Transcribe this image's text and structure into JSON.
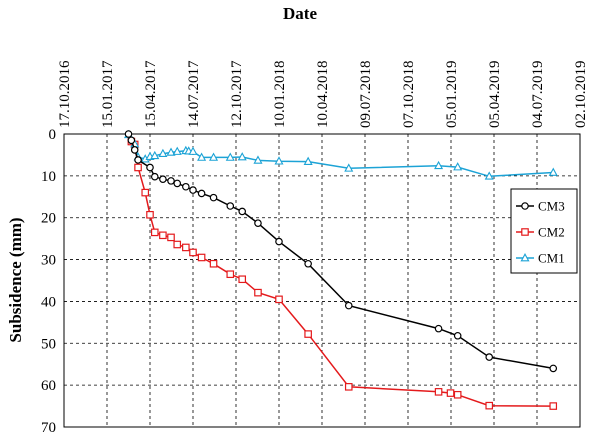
{
  "chart_data": {
    "type": "line",
    "xlabel": "Date",
    "ylabel": "Subsidence (mm)",
    "x_axis": {
      "position": "top",
      "type": "date",
      "range": [
        "2016-10-17",
        "2019-10-02"
      ],
      "tick_labels": [
        "17.10.2016",
        "15.01.2017",
        "15.04.2017",
        "14.07.2017",
        "12.10.2017",
        "10.01.2018",
        "10.04.2018",
        "09.07.2018",
        "07.10.2018",
        "05.01.2019",
        "05.04.2019",
        "04.07.2019",
        "02.10.2019"
      ],
      "tick_dates": [
        "2016-10-17",
        "2017-01-15",
        "2017-04-15",
        "2017-07-14",
        "2017-10-12",
        "2018-01-10",
        "2018-04-10",
        "2018-07-09",
        "2018-10-07",
        "2019-01-05",
        "2019-04-05",
        "2019-07-04",
        "2019-10-02"
      ]
    },
    "y_axis": {
      "reversed": true,
      "range": [
        0,
        70
      ],
      "ticks": [
        0,
        10,
        20,
        30,
        40,
        50,
        60,
        70
      ]
    },
    "grid": "dashed",
    "legend_position": "right",
    "series": [
      {
        "name": "CM3",
        "color": "#000000",
        "marker": "circle",
        "points": [
          [
            "2017-03-01",
            0.0
          ],
          [
            "2017-03-07",
            1.5
          ],
          [
            "2017-03-14",
            3.8
          ],
          [
            "2017-03-21",
            6.2
          ],
          [
            "2017-04-15",
            8.0
          ],
          [
            "2017-04-25",
            10.2
          ],
          [
            "2017-05-12",
            10.8
          ],
          [
            "2017-05-29",
            11.2
          ],
          [
            "2017-06-11",
            11.8
          ],
          [
            "2017-06-29",
            12.6
          ],
          [
            "2017-07-14",
            13.4
          ],
          [
            "2017-08-01",
            14.2
          ],
          [
            "2017-08-26",
            15.2
          ],
          [
            "2017-09-30",
            17.2
          ],
          [
            "2017-10-25",
            18.5
          ],
          [
            "2017-11-27",
            21.3
          ],
          [
            "2018-01-10",
            25.7
          ],
          [
            "2018-03-12",
            31.0
          ],
          [
            "2018-06-05",
            41.0
          ],
          [
            "2018-12-10",
            46.5
          ],
          [
            "2019-01-19",
            48.2
          ],
          [
            "2019-03-26",
            53.3
          ],
          [
            "2019-08-07",
            56.0
          ]
        ]
      },
      {
        "name": "CM2",
        "color": "#e41a1c",
        "marker": "square",
        "points": [
          [
            "2017-03-07",
            1.8
          ],
          [
            "2017-03-14",
            2.5
          ],
          [
            "2017-03-21",
            8.0
          ],
          [
            "2017-04-05",
            14.0
          ],
          [
            "2017-04-15",
            19.3
          ],
          [
            "2017-04-25",
            23.5
          ],
          [
            "2017-05-12",
            24.2
          ],
          [
            "2017-05-29",
            24.7
          ],
          [
            "2017-06-11",
            26.4
          ],
          [
            "2017-06-29",
            27.1
          ],
          [
            "2017-07-14",
            28.3
          ],
          [
            "2017-08-01",
            29.5
          ],
          [
            "2017-08-26",
            31.0
          ],
          [
            "2017-09-30",
            33.5
          ],
          [
            "2017-10-25",
            34.7
          ],
          [
            "2017-11-27",
            37.9
          ],
          [
            "2018-01-10",
            39.5
          ],
          [
            "2018-03-12",
            47.8
          ],
          [
            "2018-06-05",
            60.4
          ],
          [
            "2018-12-10",
            61.6
          ],
          [
            "2019-01-04",
            61.9
          ],
          [
            "2019-01-19",
            62.3
          ],
          [
            "2019-03-26",
            64.9
          ],
          [
            "2019-08-07",
            65.0
          ]
        ]
      },
      {
        "name": "CM1",
        "color": "#1ca3d6",
        "marker": "triangle",
        "points": [
          [
            "2017-03-01",
            0.2
          ],
          [
            "2017-03-14",
            2.4
          ],
          [
            "2017-03-21",
            5.5
          ],
          [
            "2017-04-05",
            6.0
          ],
          [
            "2017-04-15",
            5.4
          ],
          [
            "2017-04-25",
            5.2
          ],
          [
            "2017-05-12",
            4.7
          ],
          [
            "2017-05-29",
            4.4
          ],
          [
            "2017-06-11",
            4.2
          ],
          [
            "2017-06-29",
            4.0
          ],
          [
            "2017-07-05",
            4.1
          ],
          [
            "2017-07-14",
            4.2
          ],
          [
            "2017-08-01",
            5.6
          ],
          [
            "2017-08-26",
            5.6
          ],
          [
            "2017-09-30",
            5.6
          ],
          [
            "2017-10-25",
            5.5
          ],
          [
            "2017-11-27",
            6.3
          ],
          [
            "2018-01-10",
            6.5
          ],
          [
            "2018-03-12",
            6.6
          ],
          [
            "2018-06-05",
            8.2
          ],
          [
            "2018-12-10",
            7.6
          ],
          [
            "2019-01-19",
            7.9
          ],
          [
            "2019-03-26",
            10.1
          ],
          [
            "2019-08-07",
            9.2
          ]
        ]
      }
    ]
  }
}
